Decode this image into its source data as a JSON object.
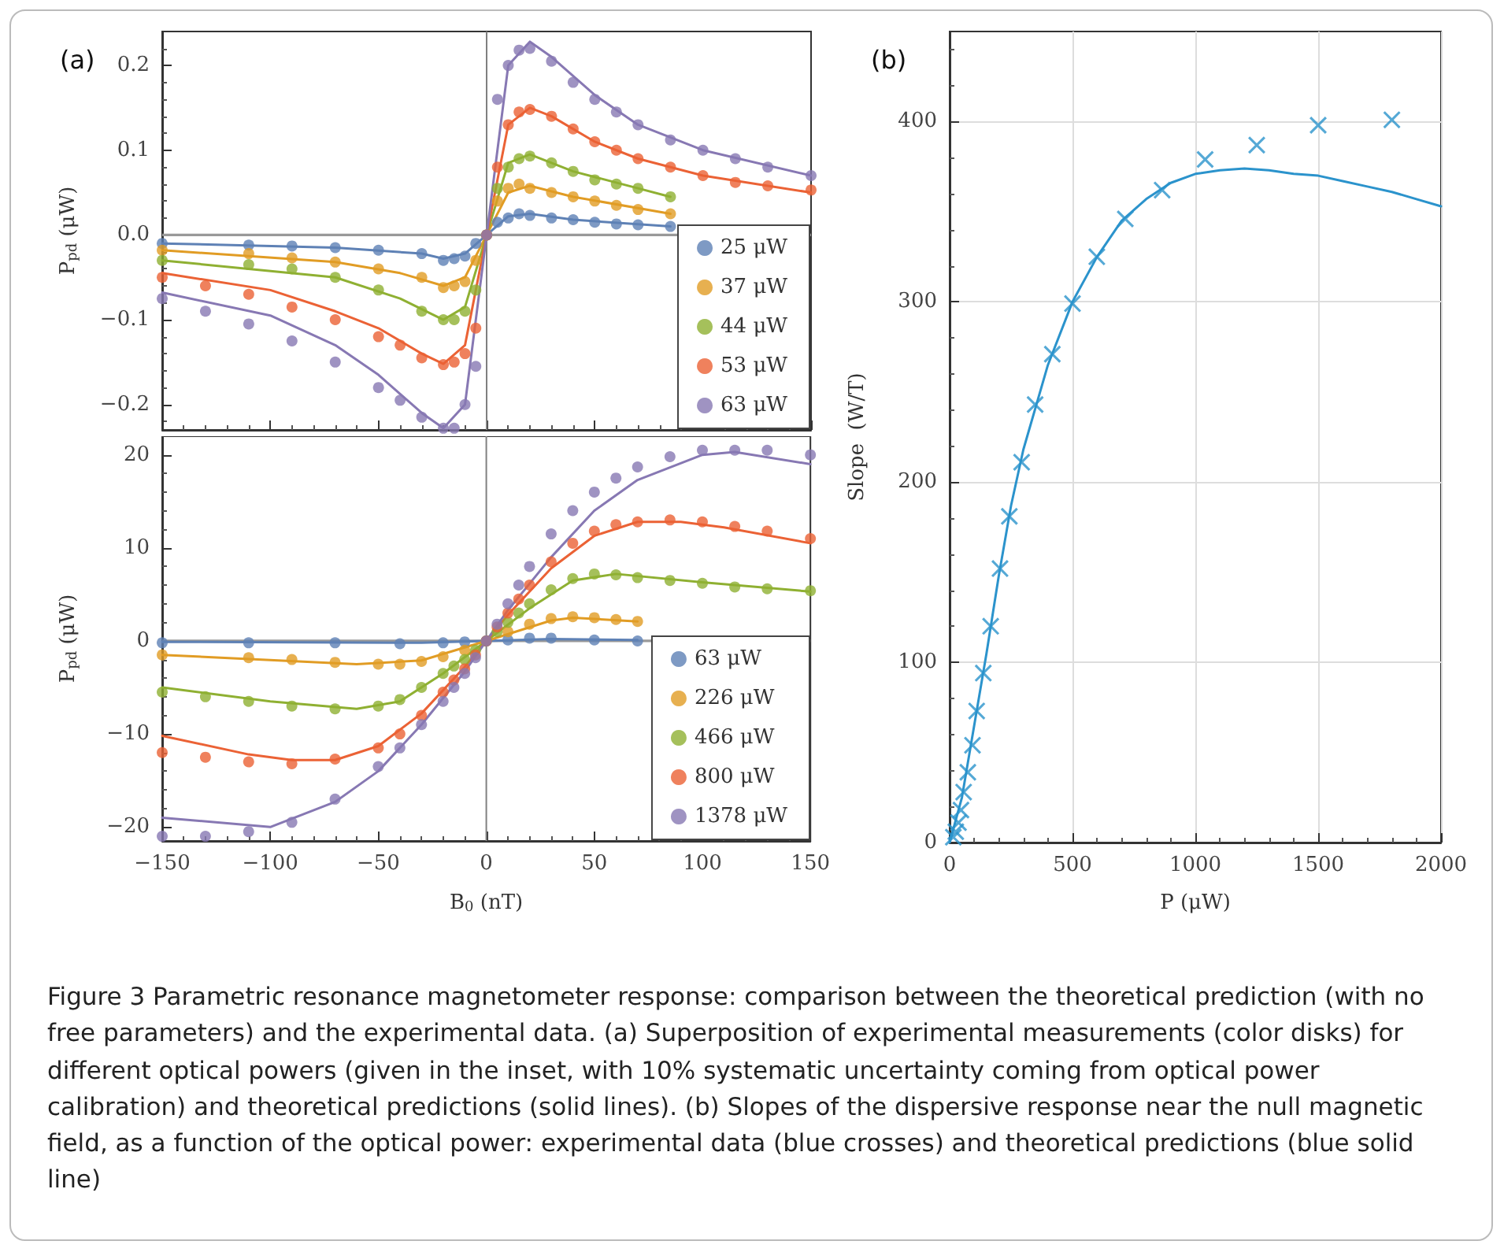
{
  "chart_data": [
    {
      "type": "scatter",
      "ylabel": "P$_{pd}$ (μW)",
      "annotations": [
        "(a)"
      ],
      "marker": "circle",
      "legend": "bottom right",
      "tick_labels": "y",
      "xlim": [
        -150,
        150
      ],
      "xticks": [
        {
          "value": -150,
          "label": null
        },
        {
          "value": -100,
          "label": null
        },
        {
          "value": -50,
          "label": null
        },
        {
          "value": 0,
          "label": null
        },
        {
          "value": 50,
          "label": null
        },
        {
          "value": 100,
          "label": null
        },
        {
          "value": 150,
          "label": null
        }
      ],
      "ylim": [
        -0.23,
        0.24
      ],
      "yticks": [
        {
          "value": -0.2,
          "label": "−0.2"
        },
        {
          "value": -0.1,
          "label": "−0.1"
        },
        {
          "value": 0,
          "label": "0.0"
        },
        {
          "value": 0.1,
          "label": "0.1"
        },
        {
          "value": 0.2,
          "label": "0.2"
        }
      ],
      "ref_lines": [
        {
          "axis": "x",
          "value": 0,
          "color": "#808080"
        },
        {
          "axis": "y",
          "value": 0,
          "color": "#999999"
        }
      ],
      "series": [
        {
          "name": "25 μW",
          "type": "scatter",
          "color": "#5e81b5",
          "x": [
            -150,
            -110,
            -90,
            -70,
            -50,
            -30,
            -20,
            -15,
            -10,
            -5,
            0,
            5,
            10,
            15,
            20,
            30,
            40,
            50,
            60,
            70,
            85
          ],
          "values": [
            -0.01,
            -0.012,
            -0.013,
            -0.015,
            -0.018,
            -0.022,
            -0.03,
            -0.028,
            -0.025,
            -0.01,
            0,
            0.015,
            0.02,
            0.025,
            0.023,
            0.02,
            0.018,
            0.015,
            0.013,
            0.012,
            0.01
          ]
        },
        {
          "name": "37 μW",
          "type": "scatter",
          "color": "#e19c24",
          "x": [
            -150,
            -110,
            -90,
            -70,
            -50,
            -30,
            -20,
            -15,
            -10,
            -5,
            0,
            5,
            10,
            15,
            20,
            30,
            40,
            50,
            60,
            70,
            85
          ],
          "values": [
            -0.018,
            -0.022,
            -0.027,
            -0.032,
            -0.04,
            -0.05,
            -0.062,
            -0.06,
            -0.055,
            -0.03,
            0,
            0.04,
            0.055,
            0.06,
            0.055,
            0.05,
            0.045,
            0.04,
            0.035,
            0.03,
            0.025
          ]
        },
        {
          "name": "44 μW",
          "type": "scatter",
          "color": "#8fb032",
          "x": [
            -150,
            -110,
            -90,
            -70,
            -50,
            -30,
            -20,
            -15,
            -10,
            -5,
            0,
            5,
            10,
            15,
            20,
            30,
            40,
            50,
            60,
            70,
            85
          ],
          "values": [
            -0.03,
            -0.035,
            -0.04,
            -0.05,
            -0.065,
            -0.09,
            -0.1,
            -0.1,
            -0.09,
            -0.065,
            0,
            0.055,
            0.08,
            0.09,
            0.093,
            0.085,
            0.075,
            0.065,
            0.06,
            0.055,
            0.045
          ]
        },
        {
          "name": "53 μW",
          "type": "scatter",
          "color": "#eb6235",
          "x": [
            -150,
            -130,
            -110,
            -90,
            -70,
            -50,
            -40,
            -30,
            -20,
            -15,
            -10,
            -5,
            0,
            5,
            10,
            15,
            20,
            30,
            40,
            50,
            60,
            70,
            85,
            100,
            115,
            130,
            150
          ],
          "values": [
            -0.05,
            -0.06,
            -0.07,
            -0.085,
            -0.1,
            -0.12,
            -0.13,
            -0.145,
            -0.153,
            -0.15,
            -0.14,
            -0.11,
            0,
            0.08,
            0.13,
            0.145,
            0.148,
            0.14,
            0.125,
            0.11,
            0.1,
            0.09,
            0.08,
            0.07,
            0.062,
            0.058,
            0.053
          ]
        },
        {
          "name": "63 μW",
          "type": "scatter",
          "color": "#8778b3",
          "x": [
            -150,
            -130,
            -110,
            -90,
            -70,
            -50,
            -40,
            -30,
            -20,
            -15,
            -10,
            -5,
            0,
            5,
            10,
            15,
            20,
            30,
            40,
            50,
            60,
            70,
            85,
            100,
            115,
            130,
            150
          ],
          "values": [
            -0.075,
            -0.09,
            -0.105,
            -0.125,
            -0.15,
            -0.18,
            -0.195,
            -0.215,
            -0.228,
            -0.228,
            -0.2,
            -0.155,
            0,
            0.16,
            0.2,
            0.218,
            0.22,
            0.205,
            0.18,
            0.16,
            0.145,
            0.13,
            0.112,
            0.1,
            0.09,
            0.08,
            0.07
          ]
        },
        {
          "type": "line",
          "marker": "none",
          "color": "#5e81b5",
          "x": [
            -150,
            -70,
            -30,
            -20,
            -10,
            0,
            10,
            20,
            40,
            85
          ],
          "values": [
            -0.01,
            -0.015,
            -0.022,
            -0.028,
            -0.022,
            0,
            0.022,
            0.025,
            0.018,
            0.01
          ]
        },
        {
          "type": "line",
          "marker": "none",
          "color": "#e19c24",
          "x": [
            -150,
            -70,
            -40,
            -20,
            -10,
            0,
            10,
            20,
            40,
            85
          ],
          "values": [
            -0.018,
            -0.032,
            -0.045,
            -0.06,
            -0.05,
            0,
            0.05,
            0.058,
            0.045,
            0.025
          ]
        },
        {
          "type": "line",
          "marker": "none",
          "color": "#8fb032",
          "x": [
            -150,
            -70,
            -40,
            -20,
            -10,
            0,
            10,
            20,
            40,
            70,
            85
          ],
          "values": [
            -0.03,
            -0.05,
            -0.075,
            -0.1,
            -0.085,
            0,
            0.085,
            0.095,
            0.075,
            0.055,
            0.045
          ]
        },
        {
          "type": "line",
          "marker": "none",
          "color": "#eb6235",
          "x": [
            -150,
            -100,
            -70,
            -50,
            -30,
            -20,
            -10,
            0,
            10,
            20,
            30,
            50,
            70,
            100,
            150
          ],
          "values": [
            -0.045,
            -0.065,
            -0.09,
            -0.11,
            -0.14,
            -0.152,
            -0.13,
            0,
            0.13,
            0.15,
            0.14,
            0.11,
            0.09,
            0.07,
            0.05
          ]
        },
        {
          "type": "line",
          "marker": "none",
          "color": "#8778b3",
          "x": [
            -150,
            -100,
            -70,
            -50,
            -30,
            -20,
            -10,
            0,
            10,
            20,
            30,
            50,
            70,
            100,
            150
          ],
          "values": [
            -0.068,
            -0.095,
            -0.13,
            -0.165,
            -0.21,
            -0.228,
            -0.2,
            0,
            0.2,
            0.228,
            0.21,
            0.165,
            0.13,
            0.1,
            0.07
          ]
        }
      ]
    },
    {
      "type": "scatter",
      "xlabel": "B$_{0}$ (nT)",
      "ylabel": "P$_{pd}$ (μW)",
      "marker": "circle",
      "legend": "bottom right",
      "xlim": [
        -150,
        150
      ],
      "xticks": [
        {
          "value": -150,
          "label": "−150"
        },
        {
          "value": -100,
          "label": "−100"
        },
        {
          "value": -50,
          "label": "−50"
        },
        0,
        50,
        100,
        150
      ],
      "ylim": [
        -21.5,
        22
      ],
      "yticks": [
        {
          "value": -20,
          "label": "−20"
        },
        {
          "value": -10,
          "label": "−10"
        },
        0,
        10,
        20
      ],
      "ref_lines": [
        {
          "axis": "x",
          "value": 0,
          "color": "#808080"
        },
        {
          "axis": "y",
          "value": 0,
          "color": "#999999"
        }
      ],
      "series": [
        {
          "name": "63 μW",
          "type": "scatter",
          "color": "#5e81b5",
          "x": [
            -150,
            -110,
            -70,
            -40,
            -20,
            -10,
            0,
            10,
            20,
            30,
            50,
            70
          ],
          "values": [
            -0.2,
            -0.2,
            -0.2,
            -0.3,
            -0.2,
            -0.1,
            0,
            0.1,
            0.3,
            0.3,
            0.1,
            0
          ]
        },
        {
          "name": "226 μW",
          "type": "scatter",
          "color": "#e19c24",
          "x": [
            -150,
            -110,
            -90,
            -70,
            -50,
            -40,
            -30,
            -20,
            -10,
            0,
            10,
            20,
            30,
            40,
            50,
            60,
            70
          ],
          "values": [
            -1.5,
            -1.8,
            -2,
            -2.3,
            -2.5,
            -2.5,
            -2.2,
            -1.7,
            -1,
            0,
            1,
            1.8,
            2.4,
            2.6,
            2.5,
            2.3,
            2.1
          ]
        },
        {
          "name": "466 μW",
          "type": "scatter",
          "color": "#8fb032",
          "x": [
            -150,
            -130,
            -110,
            -90,
            -70,
            -50,
            -40,
            -30,
            -20,
            -15,
            -10,
            -5,
            0,
            5,
            10,
            15,
            20,
            30,
            40,
            50,
            60,
            70,
            85,
            100,
            115,
            130,
            150
          ],
          "values": [
            -5.5,
            -6,
            -6.5,
            -7,
            -7.3,
            -7,
            -6.3,
            -5,
            -3.5,
            -2.7,
            -2,
            -1,
            0,
            1,
            2,
            3,
            4,
            5.5,
            6.7,
            7.2,
            7.1,
            6.8,
            6.5,
            6.2,
            5.8,
            5.6,
            5.4
          ]
        },
        {
          "name": "800 μW",
          "type": "scatter",
          "color": "#eb6235",
          "x": [
            -150,
            -130,
            -110,
            -90,
            -70,
            -50,
            -40,
            -30,
            -20,
            -15,
            -10,
            -5,
            0,
            5,
            10,
            15,
            20,
            30,
            40,
            50,
            60,
            70,
            85,
            100,
            115,
            130,
            150
          ],
          "values": [
            -12,
            -12.5,
            -13,
            -13.2,
            -12.7,
            -11.5,
            -10,
            -8,
            -5.5,
            -4.2,
            -3,
            -1.5,
            0,
            1.5,
            3,
            4.5,
            6,
            8.5,
            10.5,
            11.8,
            12.5,
            12.8,
            13,
            12.8,
            12.3,
            11.8,
            11
          ]
        },
        {
          "name": "1378 μW",
          "type": "scatter",
          "color": "#8778b3",
          "x": [
            -150,
            -130,
            -110,
            -90,
            -70,
            -50,
            -40,
            -30,
            -20,
            -15,
            -10,
            -5,
            0,
            5,
            10,
            15,
            20,
            30,
            40,
            50,
            60,
            70,
            85,
            100,
            115,
            130,
            150
          ],
          "values": [
            -21,
            -21,
            -20.5,
            -19.5,
            -17,
            -13.5,
            -11.5,
            -9,
            -6.5,
            -5,
            -3.5,
            -1.8,
            0,
            1.8,
            4,
            6,
            8,
            11.5,
            14,
            16,
            17.5,
            18.7,
            19.8,
            20.5,
            20.5,
            20.5,
            20
          ]
        },
        {
          "type": "line",
          "marker": "none",
          "color": "#5e81b5",
          "x": [
            -150,
            -30,
            0,
            30,
            70
          ],
          "values": [
            -0.1,
            -0.2,
            0,
            0.2,
            0.1
          ]
        },
        {
          "type": "line",
          "marker": "none",
          "color": "#e19c24",
          "x": [
            -150,
            -60,
            -30,
            0,
            30,
            40,
            70
          ],
          "values": [
            -1.5,
            -2.5,
            -2.1,
            0,
            2.2,
            2.5,
            2.1
          ]
        },
        {
          "type": "line",
          "marker": "none",
          "color": "#8fb032",
          "x": [
            -150,
            -100,
            -60,
            -40,
            -20,
            0,
            20,
            40,
            60,
            100,
            150
          ],
          "values": [
            -5,
            -6.5,
            -7.3,
            -6.5,
            -3.5,
            0,
            3.5,
            6.5,
            7.2,
            6.3,
            5.3
          ]
        },
        {
          "type": "line",
          "marker": "none",
          "color": "#eb6235",
          "x": [
            -150,
            -110,
            -90,
            -70,
            -50,
            -30,
            -10,
            0,
            10,
            30,
            50,
            70,
            90,
            110,
            150
          ],
          "values": [
            -10.2,
            -12.2,
            -12.8,
            -12.8,
            -11.3,
            -7.8,
            -2.8,
            0,
            2.8,
            7.8,
            11.3,
            12.8,
            12.8,
            12.2,
            10.5
          ]
        },
        {
          "type": "line",
          "marker": "none",
          "color": "#8778b3",
          "x": [
            -150,
            -100,
            -70,
            -50,
            -30,
            -10,
            0,
            10,
            30,
            50,
            70,
            100,
            115,
            150
          ],
          "values": [
            -19,
            -20,
            -17.3,
            -14,
            -9,
            -3.3,
            0,
            3.3,
            9,
            14,
            17.3,
            20,
            20.3,
            19
          ]
        }
      ]
    },
    {
      "type": "scatter",
      "xlabel": "P (μW)",
      "ylabel": "Slope  (W/T)",
      "marker": "cross",
      "grid": true,
      "annotations": [
        "(b)",
        "Figure 3  Parametric resonance magnetometer response: comparison between the theoretical prediction (with no free parameters) and the experimental data. (a) Superposition of experimental measurements (color disks) for different optical powers (given in the inset, with 10% systematic uncertainty coming from optical power calibration) and theoretical predictions (solid lines). (b) Slopes of the dispersive response near the null magnetic field, as a function of the optical power: experimental data (blue crosses) and theoretical predictions (blue solid line)"
      ],
      "xlim": [
        0,
        2000
      ],
      "xticks": [
        0,
        500,
        1000,
        1500,
        2000
      ],
      "ylim": [
        0,
        450
      ],
      "yticks": [
        0,
        100,
        200,
        300,
        400
      ],
      "series": [
        {
          "type": "scatter",
          "color": "#2b93cc",
          "x": [
            15,
            25,
            36,
            46,
            57,
            74,
            93,
            110,
            137,
            167,
            205,
            243,
            293,
            348,
            418,
            500,
            599,
            715,
            865,
            1040,
            1250,
            1500,
            1800
          ],
          "values": [
            3,
            6,
            11,
            18,
            28,
            39,
            54,
            73,
            94,
            120,
            152,
            181,
            211,
            243,
            271,
            299,
            325,
            346,
            362,
            379,
            387,
            398,
            401
          ]
        },
        {
          "type": "line",
          "marker": "none",
          "color": "#2b93cc",
          "x": [
            0,
            50,
            100,
            150,
            200,
            250,
            300,
            400,
            500,
            600,
            700,
            800,
            900,
            1000,
            1100,
            1200,
            1300,
            1400,
            1500,
            1600,
            1700,
            1800,
            1900,
            2000
          ],
          "values": [
            0,
            25,
            65,
            105,
            148,
            187,
            218,
            265,
            300,
            325,
            345,
            357,
            366,
            371,
            373,
            374,
            373,
            371,
            370,
            367,
            364,
            361,
            357,
            353
          ]
        }
      ]
    }
  ]
}
